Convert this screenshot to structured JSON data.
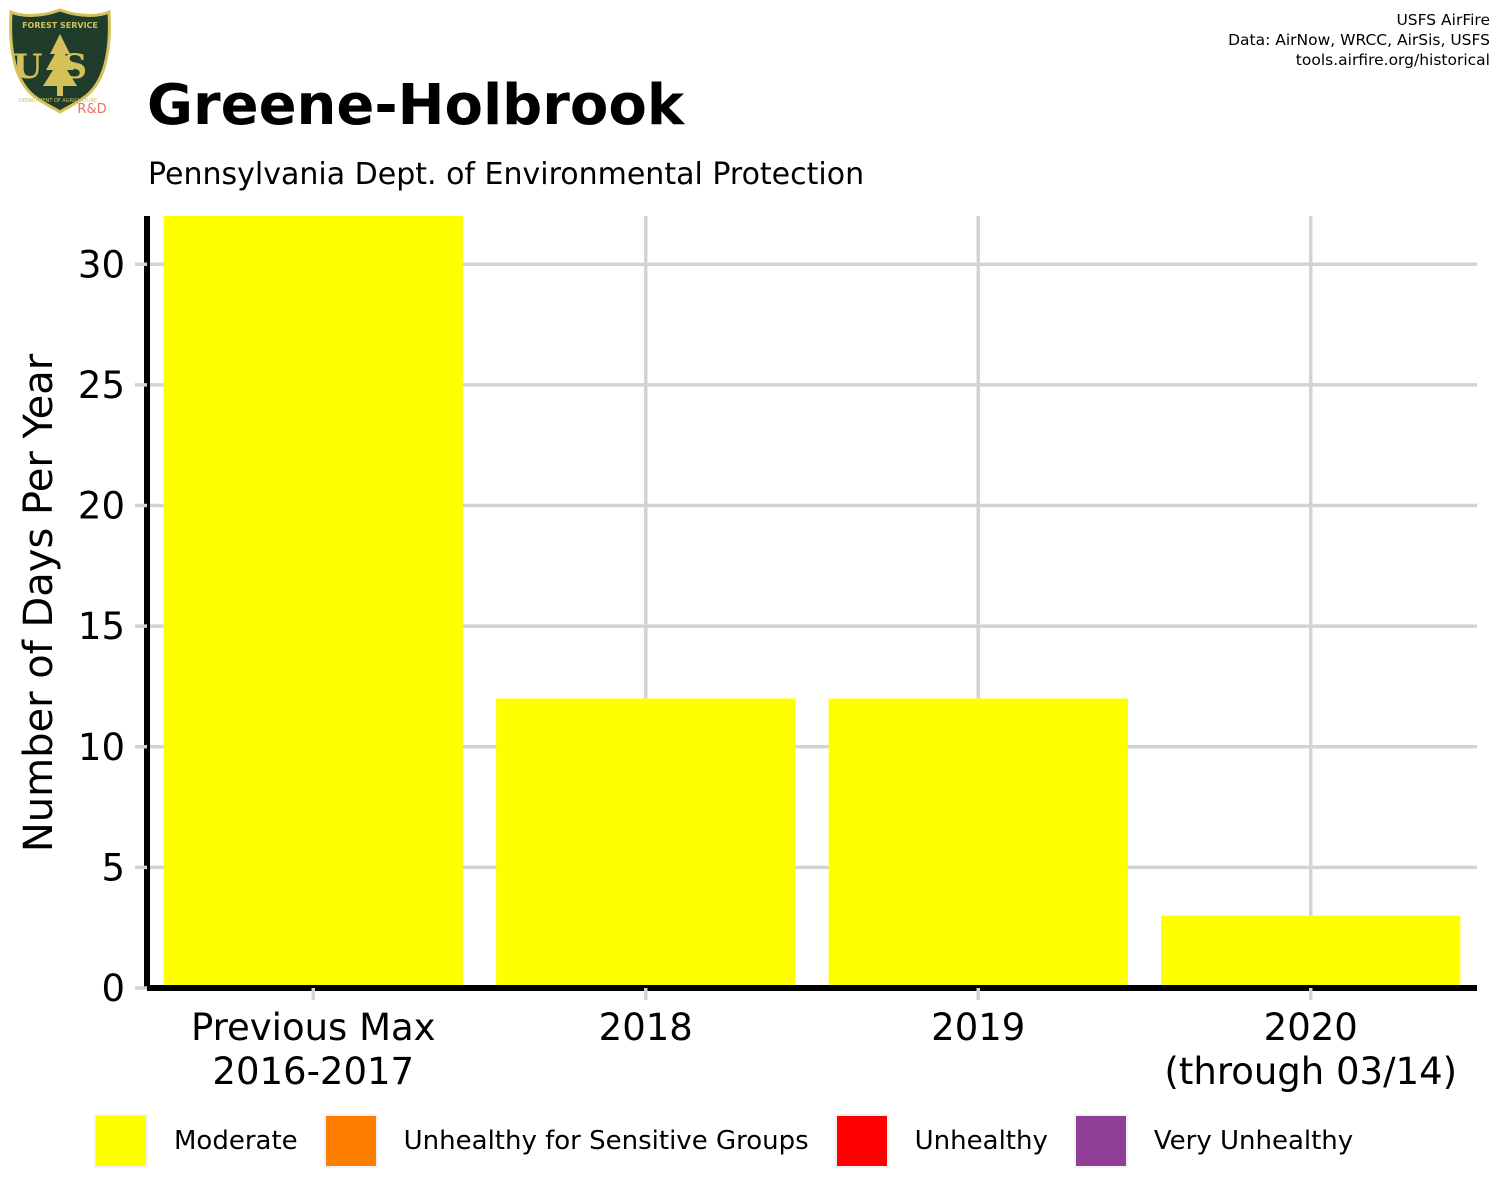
{
  "logo": {
    "top_text": "FOREST SERVICE",
    "monogram": "US",
    "bottom_text": "DEPARTMENT OF AGRICULTURE",
    "suffix": "R&D",
    "colors": {
      "shield": "#1f3d2a",
      "rim": "#d4c15a",
      "text": "#d4c15a",
      "suffix": "#e8735f"
    }
  },
  "credits": {
    "line1": "USFS AirFire",
    "line2": "Data: AirNow, WRCC, AirSis, USFS",
    "line3": "tools.airfire.org/historical"
  },
  "chart_data": {
    "type": "bar",
    "title": "Greene-Holbrook",
    "subtitle": "Pennsylvania Dept. of Environmental Protection",
    "ylabel": "Number of Days Per Year",
    "xlabel": "",
    "categories": [
      [
        "Previous Max",
        "2016-2017"
      ],
      [
        "2018"
      ],
      [
        "2019"
      ],
      [
        "2020",
        "(through 03/14)"
      ]
    ],
    "series": [
      {
        "name": "Moderate",
        "color": "#ffff00",
        "values": [
          32,
          12,
          12,
          3
        ]
      },
      {
        "name": "Unhealthy for Sensitive Groups",
        "color": "#ff7e00",
        "values": [
          0,
          0,
          0,
          0
        ]
      },
      {
        "name": "Unhealthy",
        "color": "#ff0000",
        "values": [
          0,
          0,
          0,
          0
        ]
      },
      {
        "name": "Very Unhealthy",
        "color": "#8f3f97",
        "values": [
          0,
          0,
          0,
          0
        ]
      }
    ],
    "ylim": [
      0,
      32
    ],
    "yticks": [
      0,
      5,
      10,
      15,
      20,
      25,
      30
    ],
    "grid": true,
    "legend_position": "bottom",
    "colors": {
      "grid": "#d3d3d3",
      "axis": "#000000"
    }
  }
}
